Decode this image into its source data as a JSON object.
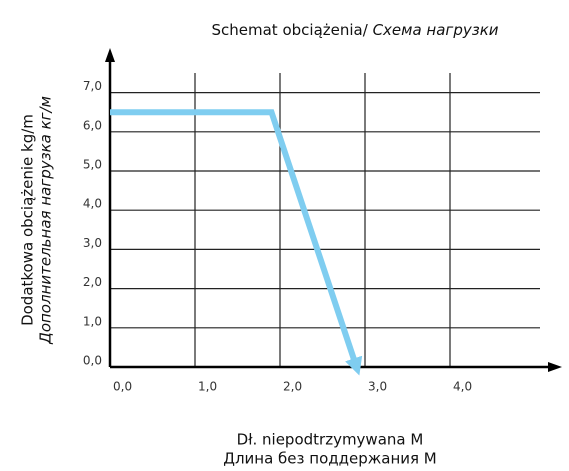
{
  "chart_data": {
    "type": "line",
    "title": [
      "Schemat obciążenia/",
      "Схема нагрузки"
    ],
    "y_label": [
      "Dodatkowa obciążenie kg/m",
      "Дополнительная нагрузка кг/м"
    ],
    "x_label": [
      "Dł. niepodtrzymywana M",
      "Длина без поддержания M"
    ],
    "x": [
      0,
      1.9,
      2.9
    ],
    "series": [
      {
        "color": "#7fcdf0",
        "values": [
          6.5,
          6.5,
          0
        ]
      }
    ],
    "xlim": [
      0,
      5.2
    ],
    "ylim": [
      0,
      7.5
    ],
    "xticks": [
      {
        "value": 0,
        "label": "0,0"
      },
      {
        "value": 1,
        "label": "1,0"
      },
      {
        "value": 2,
        "label": "2,0"
      },
      {
        "value": 3,
        "label": "3,0"
      },
      {
        "value": 4,
        "label": "4,0"
      }
    ],
    "yticks": [
      {
        "value": 0,
        "label": "0,0"
      },
      {
        "value": 1,
        "label": "1,0"
      },
      {
        "value": 2,
        "label": "2,0"
      },
      {
        "value": 3,
        "label": "3,0"
      },
      {
        "value": 4,
        "label": "4,0"
      },
      {
        "value": 5,
        "label": "5,0"
      },
      {
        "value": 6,
        "label": "6,0"
      },
      {
        "value": 7,
        "label": "7,0"
      }
    ],
    "grid": true
  }
}
